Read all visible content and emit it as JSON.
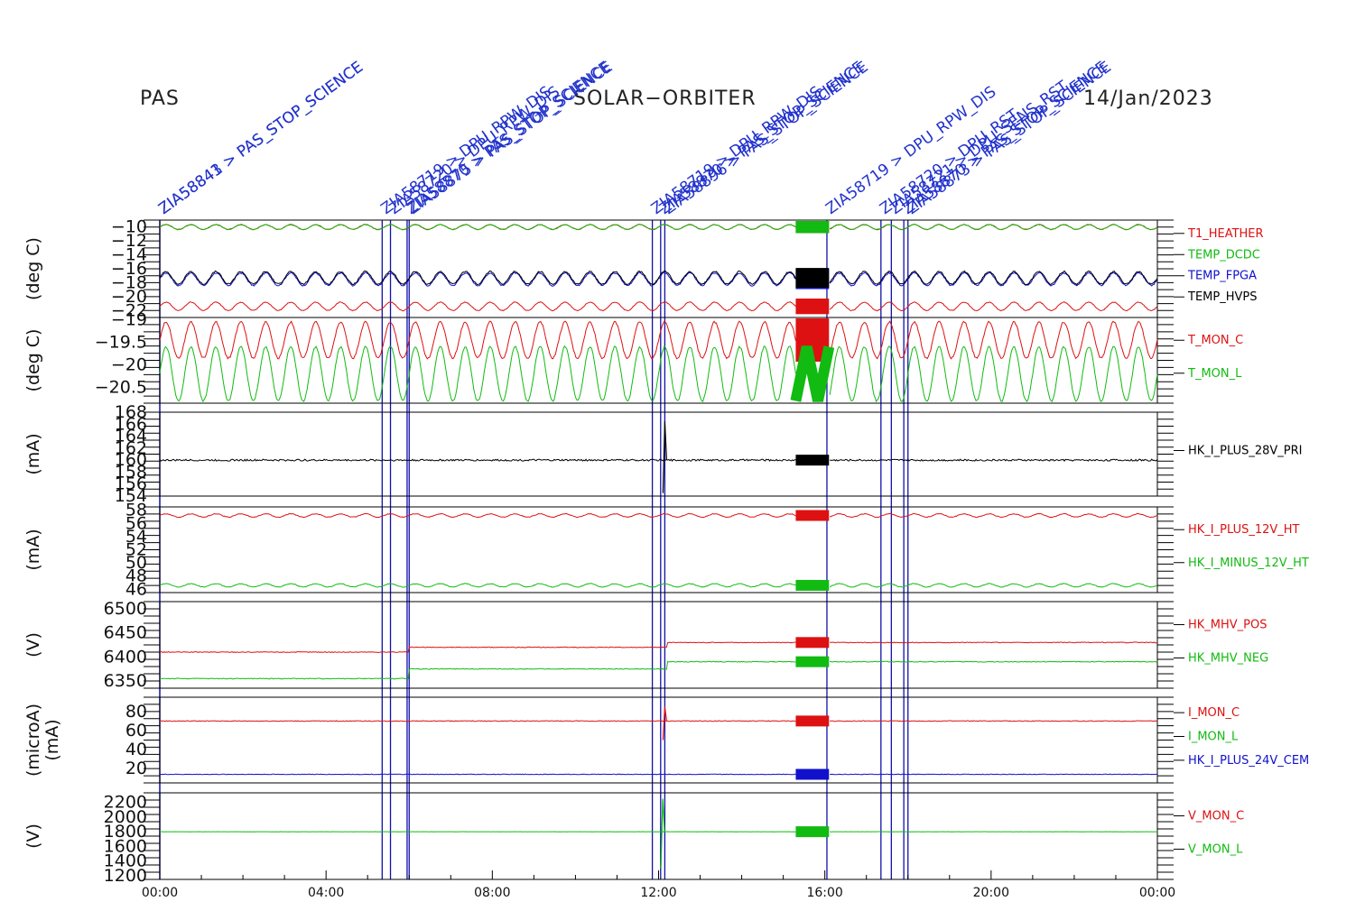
{
  "header": {
    "left": "PAS",
    "center": "SOLAR−ORBITER",
    "right": "14/Jan/2023"
  },
  "colors": {
    "red": "#dd1111",
    "green": "#11bb11",
    "blue": "#1111cc",
    "black": "#000000",
    "marker": "#1111aa",
    "command_text": "#2233cc"
  },
  "commands": [
    {
      "time": 0.0,
      "label": "ZIA58841 > PAS_STOP_SCIENCE"
    },
    {
      "time": 0.0,
      "label": "ZIA58843 > PAS_STOP_SCIENCE"
    },
    {
      "time": 5.35,
      "label": "ZIA58719 > DPU_RPW_DIS"
    },
    {
      "time": 5.55,
      "label": "ZIA58720 > DPU_RPW_DIS"
    },
    {
      "time": 5.95,
      "label": "ZIA58870 > PAS_STOP_SCIENCE"
    },
    {
      "time": 6.0,
      "label": "ZIA58875 > PAS_STOP_SCIENCE"
    },
    {
      "time": 11.85,
      "label": "ZIA58719 > DPU_RPW_DIS"
    },
    {
      "time": 12.05,
      "label": "ZIA58870 > PAS_STOP_SCIENCE"
    },
    {
      "time": 12.15,
      "label": "ZIA58896 > PAS_STOP_SCIENCE"
    },
    {
      "time": 16.05,
      "label": "ZIA58719 > DPU_RPW_DIS"
    },
    {
      "time": 17.35,
      "label": "ZIA58720 > DPU_RST"
    },
    {
      "time": 17.6,
      "label": "ZIA58721 > DPU_SENS_RST"
    },
    {
      "time": 17.9,
      "label": "ZIA58870 > PAS_STOP_SCIENCE"
    },
    {
      "time": 18.0,
      "label": "ZIA58873 > PAS_STOP_SCIENCE"
    }
  ],
  "chart_data": {
    "type": "line",
    "x_axis": {
      "label": "",
      "unit": "hours",
      "range": [
        0,
        24
      ],
      "tick_labels": [
        "00:00",
        "04:00",
        "08:00",
        "12:00",
        "16:00",
        "20:00",
        "00:00"
      ]
    },
    "panels": [
      {
        "ylabel": "(deg C)",
        "ylim": [
          -23,
          -9
        ],
        "yticks": [
          -10,
          -12,
          -14,
          -16,
          -18,
          -20,
          -22
        ],
        "series": [
          {
            "name": "T1_HEATHER",
            "color": "#dd1111",
            "label_color": "#dd1111",
            "base": -10.0,
            "amp": 0.35,
            "period": 0.6,
            "noise": 0.05
          },
          {
            "name": "TEMP_DCDC",
            "color": "#11bb11",
            "label_color": "#11bb11",
            "base": -10.0,
            "amp": 0.35,
            "period": 0.6,
            "noise": 0.05
          },
          {
            "name": "TEMP_FPGA",
            "color": "#1111cc",
            "label_color": "#1111cc",
            "base": -17.5,
            "amp": 0.9,
            "period": 0.6,
            "noise": 0.1
          },
          {
            "name": "TEMP_HVPS",
            "color": "#000000",
            "label_color": "#000000",
            "base": -17.3,
            "amp": 0.9,
            "period": 0.6,
            "noise": 0.1
          },
          {
            "name": "",
            "color": "#dd1111",
            "label_color": "#dd1111",
            "base": -21.4,
            "amp": 0.6,
            "period": 0.6,
            "noise": 0.05
          }
        ]
      },
      {
        "ylabel": "(deg C)",
        "ylim": [
          -20.85,
          -18.95
        ],
        "yticks": [
          -19.0,
          -19.5,
          -20.0,
          -20.5
        ],
        "series": [
          {
            "name": "T_MON_C",
            "color": "#dd1111",
            "label_color": "#dd1111",
            "base": -19.45,
            "amp": 0.4,
            "period": 0.6,
            "noise": 0.02
          },
          {
            "name": "T_MON_L",
            "color": "#11bb11",
            "label_color": "#11bb11",
            "base": -20.2,
            "amp": 0.6,
            "period": 0.6,
            "noise": 0.02
          }
        ]
      },
      {
        "ylabel": "(mA)",
        "ylim": [
          154,
          168
        ],
        "yticks": [
          168,
          166,
          164,
          162,
          160,
          158,
          156,
          154
        ],
        "series": [
          {
            "name": "HK_I_PLUS_28V_PRI",
            "color": "#000000",
            "label_color": "#000000",
            "base": 160.0,
            "amp": 0.0,
            "period": 1.0,
            "noise": 0.15,
            "spike_at": 12.15,
            "spike_min": 154.5,
            "spike_max": 166.5
          }
        ]
      },
      {
        "ylabel": "(mA)",
        "ylim": [
          45.5,
          58.5
        ],
        "yticks": [
          58,
          56,
          54,
          52,
          50,
          48,
          46
        ],
        "series": [
          {
            "name": "HK_I_PLUS_12V_HT",
            "color": "#dd1111",
            "label_color": "#dd1111",
            "base": 57.2,
            "amp": 0.25,
            "period": 0.6,
            "noise": 0.05
          },
          {
            "name": "HK_I_MINUS_12V_HT",
            "color": "#11bb11",
            "label_color": "#11bb11",
            "base": 46.6,
            "amp": 0.25,
            "period": 0.6,
            "noise": 0.05
          }
        ]
      },
      {
        "ylabel": "(V)",
        "ylim": [
          6335,
          6515
        ],
        "yticks": [
          6500,
          6450,
          6400,
          6350
        ],
        "series": [
          {
            "name": "HK_MHV_POS",
            "color": "#dd1111",
            "label_color": "#dd1111",
            "steps": [
              [
                0,
                6410
              ],
              [
                6.0,
                6420
              ],
              [
                12.2,
                6430
              ],
              [
                18.0,
                6430
              ]
            ],
            "noise": 0.8
          },
          {
            "name": "HK_MHV_NEG",
            "color": "#11bb11",
            "label_color": "#11bb11",
            "steps": [
              [
                0,
                6355
              ],
              [
                6.0,
                6375
              ],
              [
                12.2,
                6390
              ],
              [
                18.0,
                6390
              ]
            ],
            "noise": 0.8
          }
        ]
      },
      {
        "ylabel": "(microA)",
        "ylabel2": "(mA)",
        "ylim": [
          5,
          95
        ],
        "yticks": [
          80,
          60,
          40,
          20
        ],
        "series": [
          {
            "name": "I_MON_C",
            "color": "#dd1111",
            "label_color": "#dd1111",
            "base": 70.0,
            "amp": 0.0,
            "period": 1.0,
            "noise": 0.4,
            "spike_at": 12.15,
            "spike_min": 50.0,
            "spike_max": 85.0
          },
          {
            "name": "I_MON_L",
            "color": "#11bb11",
            "label_color": "#11bb11",
            "base": 12.0,
            "amp": 0.0,
            "period": 1.0,
            "noise": 0.0,
            "hidden": true
          },
          {
            "name": "HK_I_PLUS_24V_CEM",
            "color": "#1111cc",
            "label_color": "#1111cc",
            "base": 14.0,
            "amp": 0.0,
            "period": 1.0,
            "noise": 0.3
          }
        ]
      },
      {
        "ylabel": "(V)",
        "ylim": [
          1150,
          2330
        ],
        "yticks": [
          2200,
          2000,
          1800,
          1600,
          1400,
          1200
        ],
        "series": [
          {
            "name": "V_MON_C",
            "color": "#dd1111",
            "label_color": "#dd1111",
            "base": 1800.0,
            "amp": 0.0,
            "period": 1.0,
            "noise": 0.0,
            "hidden": true
          },
          {
            "name": "V_MON_L",
            "color": "#11bb11",
            "label_color": "#11bb11",
            "base": 1800.0,
            "amp": 0.0,
            "period": 1.0,
            "noise": 1.0,
            "spike_at": 12.1,
            "spike_min": 1300.0,
            "spike_max": 2250.0
          }
        ]
      }
    ],
    "burst": {
      "start": 15.3,
      "end": 16.1
    }
  }
}
